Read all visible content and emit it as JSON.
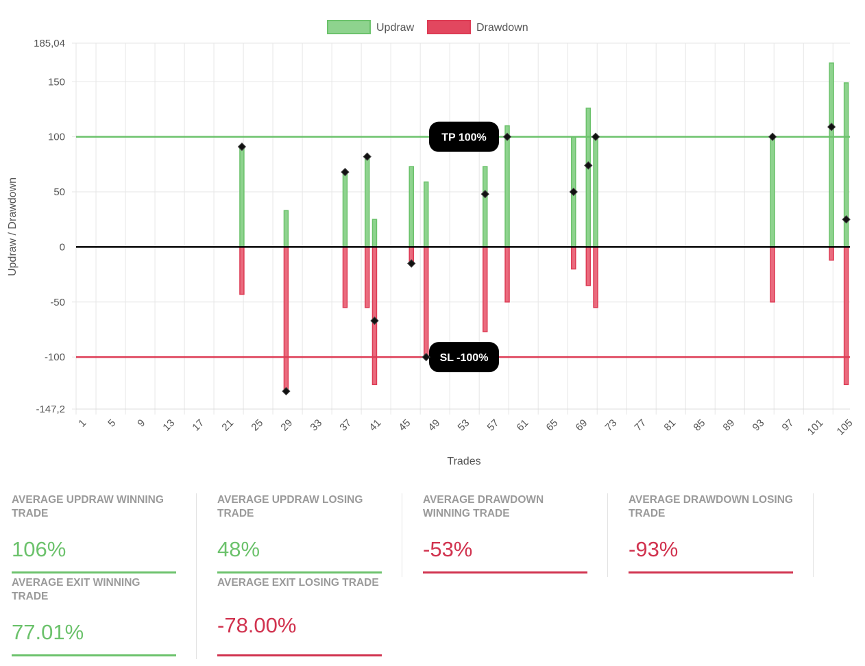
{
  "colors": {
    "updraw": "#6cc26c",
    "drawdown": "#dd3c55",
    "updraw_fill": "#8ed38e",
    "drawdown_fill": "#ea6b7e",
    "exit_marker": "#111111",
    "zero_line": "#000000"
  },
  "chart_data": {
    "type": "bar",
    "xlabel": "Trades",
    "ylabel": "Updraw / Drawdown",
    "legend": {
      "position": "top",
      "entries": [
        "Updraw",
        "Drawdown"
      ]
    },
    "ylim": [
      -147.2,
      185.04
    ],
    "y_ticks": [
      "185,04",
      "150",
      "100",
      "50",
      "0",
      "-50",
      "-100",
      "-147,2"
    ],
    "y_tick_values": [
      185.04,
      150,
      100,
      50,
      0,
      -50,
      -100,
      -147.2
    ],
    "x_range": [
      1,
      105
    ],
    "x_tick_labels": [
      "1",
      "5",
      "9",
      "13",
      "17",
      "21",
      "25",
      "29",
      "33",
      "37",
      "41",
      "45",
      "49",
      "53",
      "57",
      "61",
      "65",
      "69",
      "73",
      "77",
      "81",
      "85",
      "89",
      "93",
      "97",
      "101",
      "105"
    ],
    "grid": true,
    "reference_lines": [
      {
        "label": "TP 100%",
        "value": 100,
        "color": "#6cc26c"
      },
      {
        "label": "SL -100%",
        "value": -100,
        "color": "#dd3c55"
      }
    ],
    "series": [
      {
        "name": "Updraw",
        "points": [
          [
            23,
            92
          ],
          [
            29,
            33
          ],
          [
            37,
            68
          ],
          [
            40,
            83
          ],
          [
            41,
            25
          ],
          [
            46,
            73
          ],
          [
            48,
            59
          ],
          [
            56,
            73
          ],
          [
            59,
            110
          ],
          [
            68,
            100
          ],
          [
            70,
            126
          ],
          [
            71,
            100
          ],
          [
            95,
            100
          ],
          [
            103,
            167
          ],
          [
            105,
            149
          ]
        ]
      },
      {
        "name": "Drawdown",
        "points": [
          [
            23,
            -43
          ],
          [
            29,
            -131
          ],
          [
            37,
            -55
          ],
          [
            40,
            -55
          ],
          [
            41,
            -125
          ],
          [
            46,
            -15
          ],
          [
            48,
            -100
          ],
          [
            56,
            -77
          ],
          [
            59,
            -50
          ],
          [
            68,
            -20
          ],
          [
            70,
            -35
          ],
          [
            71,
            -55
          ],
          [
            95,
            -50
          ],
          [
            103,
            -12
          ],
          [
            105,
            -125
          ]
        ]
      },
      {
        "name": "Exit",
        "points": [
          [
            23,
            91
          ],
          [
            29,
            -131
          ],
          [
            37,
            68
          ],
          [
            40,
            82
          ],
          [
            41,
            -67
          ],
          [
            46,
            -15
          ],
          [
            48,
            -100
          ],
          [
            56,
            48
          ],
          [
            59,
            100
          ],
          [
            68,
            50
          ],
          [
            70,
            74
          ],
          [
            71,
            100
          ],
          [
            95,
            100
          ],
          [
            103,
            109
          ],
          [
            105,
            25
          ]
        ]
      }
    ]
  },
  "stats": [
    {
      "label": "Average Updraw Winning Trade",
      "value": "106%",
      "tone": "updraw"
    },
    {
      "label": "Average Updraw Losing Trade",
      "value": "48%",
      "tone": "updraw"
    },
    {
      "label": "Average Drawdown Winning Trade",
      "value": "-53%",
      "tone": "drawdown"
    },
    {
      "label": "Average Drawdown Losing Trade",
      "value": "-93%",
      "tone": "drawdown"
    },
    {
      "label": "Average Exit Winning Trade",
      "value": "77.01%",
      "tone": "updraw"
    },
    {
      "label": "Average Exit Losing Trade",
      "value": "-78.00%",
      "tone": "drawdown"
    }
  ]
}
